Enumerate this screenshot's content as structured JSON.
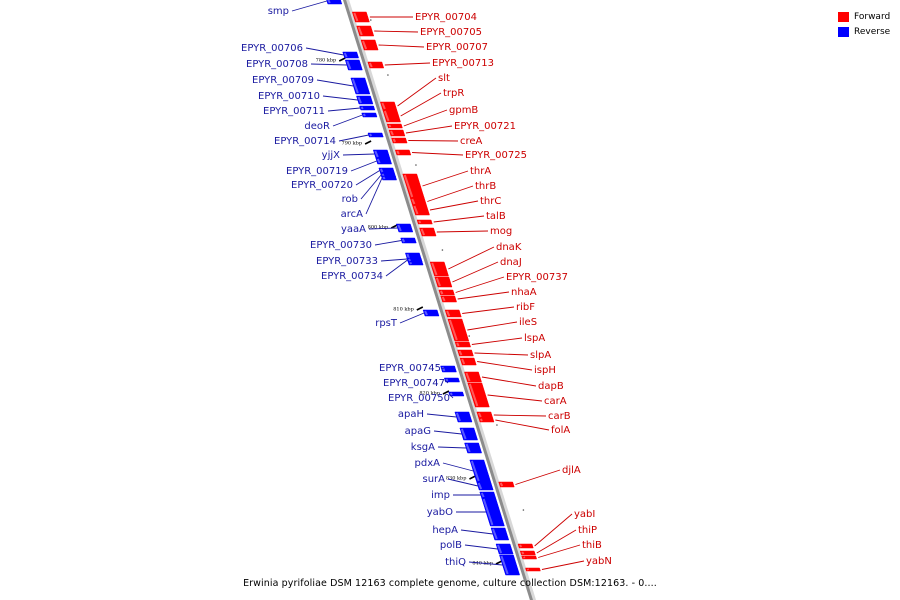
{
  "legend": {
    "forward_label": "Forward",
    "reverse_label": "Reverse",
    "forward_color": "#ff0000",
    "reverse_color": "#0000ff"
  },
  "caption": "Erwinia pyrifoliae DSM 12163 complete genome, culture collection DSM:12163. - 0....",
  "axis_color": "#8c8c8c",
  "label_colors": {
    "forward": "#cc0000",
    "reverse": "#1a1aa0"
  },
  "ticks": [
    "780 kbp",
    "790 kbp",
    "800 kbp",
    "810 kbp",
    "820 kbp",
    "830 kbp",
    "840 kbp"
  ],
  "forward_genes": [
    "EPYR_00704",
    "EPYR_00705",
    "EPYR_00707",
    "EPYR_00713",
    "slt",
    "trpR",
    "gpmB",
    "EPYR_00721",
    "creA",
    "EPYR_00725",
    "thrA",
    "thrB",
    "thrC",
    "talB",
    "mog",
    "dnaK",
    "dnaJ",
    "EPYR_00737",
    "nhaA",
    "ribF",
    "ileS",
    "lspA",
    "slpA",
    "ispH",
    "dapB",
    "carA",
    "carB",
    "folA",
    "djlA",
    "yabI",
    "thiP",
    "thiB",
    "yabN"
  ],
  "reverse_genes": [
    "smp",
    "EPYR_00706",
    "EPYR_00708",
    "EPYR_00709",
    "EPYR_00710",
    "EPYR_00711",
    "deoR",
    "EPYR_00714",
    "yjjX",
    "EPYR_00719",
    "EPYR_00720",
    "rob",
    "arcA",
    "yaaA",
    "EPYR_00730",
    "EPYR_00733",
    "EPYR_00734",
    "rpsT",
    "EPYR_00745",
    "EPYR_00747",
    "EPYR_00750",
    "apaH",
    "apaG",
    "ksgA",
    "pdxA",
    "surA",
    "imp",
    "yabO",
    "hepA",
    "polB",
    "thiQ"
  ]
}
